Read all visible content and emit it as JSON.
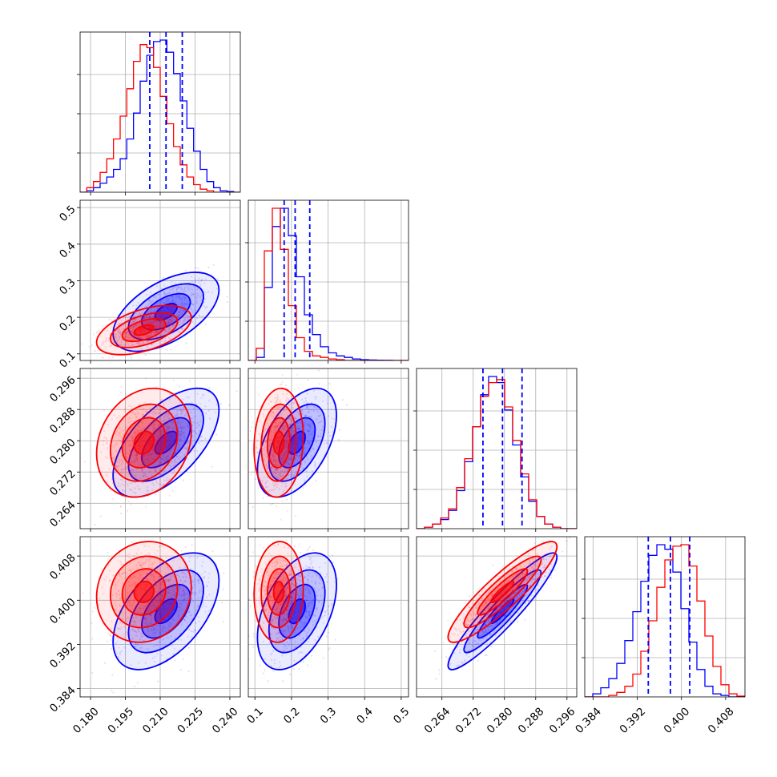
{
  "chart_data": {
    "type": "corner",
    "parameters": [
      {
        "range": [
          0.1755,
          0.2445
        ],
        "ticks": [
          "0.180",
          "0.195",
          "0.210",
          "0.225",
          "0.240"
        ],
        "tick_values": [
          0.18,
          0.195,
          0.21,
          0.225,
          0.24
        ],
        "quantiles_blue": [
          0.2055,
          0.2125,
          0.2195
        ],
        "hist": {
          "blue": [
            0,
            0.01,
            0.03,
            0.06,
            0.1,
            0.15,
            0.22,
            0.35,
            0.52,
            0.73,
            0.9,
            0.99,
            1.0,
            0.92,
            0.78,
            0.6,
            0.42,
            0.27,
            0.15,
            0.07,
            0.03,
            0.01,
            0.005,
            0
          ],
          "red": [
            0,
            0.03,
            0.07,
            0.13,
            0.22,
            0.35,
            0.5,
            0.68,
            0.86,
            0.97,
            0.95,
            0.82,
            0.63,
            0.45,
            0.3,
            0.18,
            0.1,
            0.05,
            0.02,
            0.01,
            0,
            0,
            0,
            0
          ]
        }
      },
      {
        "range": [
          0.082,
          0.52
        ],
        "ticks": [
          "0.1",
          "0.2",
          "0.3",
          "0.4",
          "0.5"
        ],
        "tick_values": [
          0.1,
          0.2,
          0.3,
          0.4,
          0.5
        ],
        "quantiles_blue": [
          0.18,
          0.21,
          0.25
        ],
        "hist": {
          "blue": [
            0,
            0.02,
            0.48,
            0.88,
            1.0,
            0.82,
            0.55,
            0.3,
            0.17,
            0.09,
            0.05,
            0.03,
            0.02,
            0.01,
            0.005,
            0.003,
            0.002,
            0.001,
            0,
            0
          ],
          "red": [
            0,
            0.08,
            0.72,
            1.0,
            0.73,
            0.36,
            0.15,
            0.06,
            0.03,
            0.02,
            0.01,
            0.005,
            0,
            0,
            0,
            0,
            0,
            0,
            0,
            0
          ]
        }
      },
      {
        "range": [
          0.2575,
          0.2985
        ],
        "ticks": [
          "0.264",
          "0.272",
          "0.280",
          "0.288",
          "0.296"
        ],
        "tick_values": [
          0.264,
          0.272,
          0.28,
          0.288,
          0.296
        ],
        "quantiles_blue": [
          0.2745,
          0.2795,
          0.2845
        ],
        "hist": {
          "blue": [
            0,
            0.01,
            0.03,
            0.06,
            0.12,
            0.25,
            0.44,
            0.67,
            0.88,
            1.0,
            0.96,
            0.78,
            0.55,
            0.34,
            0.18,
            0.08,
            0.03,
            0.01,
            0,
            0
          ],
          "red": [
            0,
            0.01,
            0.03,
            0.07,
            0.13,
            0.27,
            0.46,
            0.67,
            0.87,
            0.96,
            0.98,
            0.8,
            0.58,
            0.36,
            0.19,
            0.08,
            0.03,
            0.01,
            0,
            0
          ]
        }
      },
      {
        "range": [
          0.3825,
          0.4115
        ],
        "ticks": [
          "0.384",
          "0.392",
          "0.400",
          "0.408"
        ],
        "tick_values": [
          0.384,
          0.392,
          0.4,
          0.408
        ],
        "quantiles_blue": [
          0.394,
          0.398,
          0.4015
        ],
        "hist": {
          "blue": [
            0,
            0.02,
            0.06,
            0.12,
            0.22,
            0.37,
            0.56,
            0.76,
            0.93,
            1.0,
            0.97,
            0.82,
            0.58,
            0.36,
            0.18,
            0.07,
            0.02,
            0.01,
            0,
            0
          ],
          "red": [
            0,
            0,
            0,
            0.01,
            0.03,
            0.07,
            0.15,
            0.3,
            0.5,
            0.72,
            0.9,
            0.99,
            1.0,
            0.86,
            0.63,
            0.4,
            0.2,
            0.08,
            0.02,
            0.005
          ]
        }
      }
    ],
    "samples": {
      "blue": {
        "mean": [
          0.2125,
          0.215,
          0.2795,
          0.398
        ],
        "std": [
          0.0095,
          0.045,
          0.0058,
          0.0044
        ],
        "corr": [
          [
            1,
            0.55,
            0.6,
            0.52
          ],
          [
            0.55,
            1,
            0.5,
            0.45
          ],
          [
            0.6,
            0.5,
            1,
            0.93
          ],
          [
            0.52,
            0.45,
            0.93,
            1
          ]
        ]
      },
      "red": {
        "mean": [
          0.203,
          0.165,
          0.2795,
          0.4015
        ],
        "std": [
          0.0085,
          0.028,
          0.0058,
          0.0038
        ],
        "corr": [
          [
            1,
            0.5,
            0.2,
            0.1
          ],
          [
            0.5,
            1,
            0.1,
            0.05
          ],
          [
            0.2,
            0.1,
            1,
            0.9
          ],
          [
            0.1,
            0.05,
            0.9,
            1
          ]
        ]
      }
    },
    "colors": {
      "blue": "#0000ff",
      "red": "#ff0000",
      "quantile": "#0000ff",
      "grid": "#b0b0b0"
    },
    "grid": true,
    "quantile_linestyle": "dashed"
  }
}
